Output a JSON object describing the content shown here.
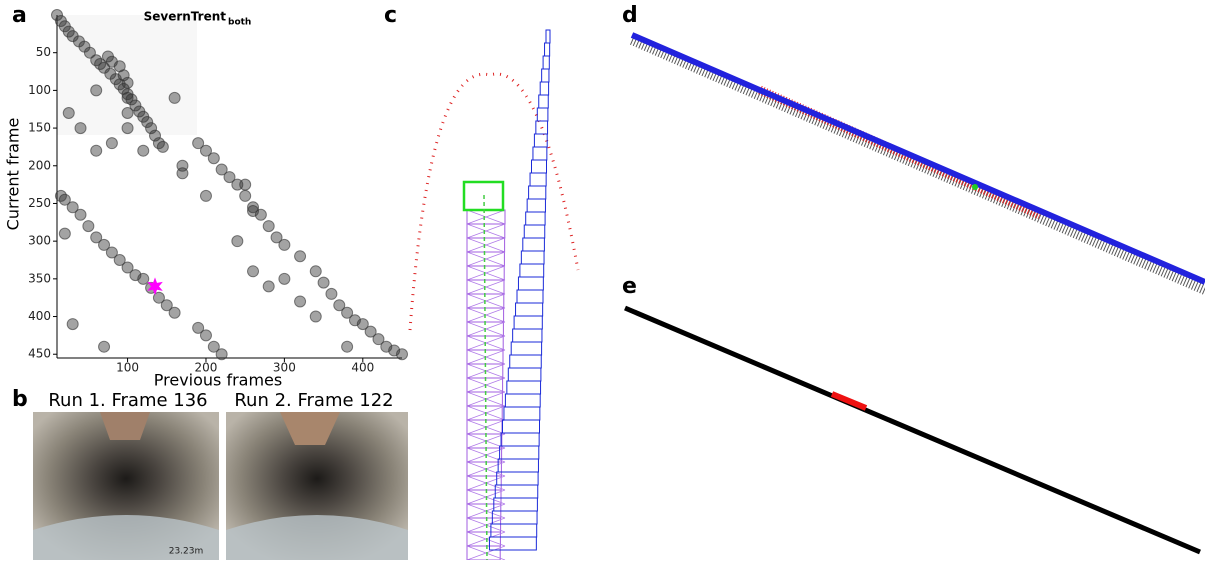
{
  "panel_labels": [
    "a",
    "b",
    "c",
    "d",
    "e"
  ],
  "chart_data": {
    "type": "scatter",
    "title": "SevernTrent",
    "title_subscript": "both",
    "x_label": "Previous frames",
    "y_label": "Current frame",
    "xlim": [
      10,
      450
    ],
    "ylim": [
      455,
      0
    ],
    "xticks": [
      100,
      200,
      300,
      400
    ],
    "yticks": [
      50,
      100,
      150,
      200,
      250,
      300,
      350,
      400,
      450
    ],
    "color": "#333333",
    "x": [
      10,
      15,
      20,
      25,
      30,
      38,
      45,
      52,
      60,
      65,
      70,
      78,
      85,
      90,
      95,
      100,
      105,
      110,
      115,
      120,
      125,
      130,
      135,
      140,
      145,
      75,
      80,
      90,
      95,
      100,
      100,
      100,
      100,
      190,
      200,
      210,
      220,
      230,
      240,
      250,
      260,
      270,
      280,
      290,
      300,
      320,
      340,
      350,
      360,
      370,
      380,
      390,
      400,
      410,
      420,
      430,
      440,
      450,
      15,
      20,
      30,
      40,
      50,
      60,
      70,
      80,
      90,
      100,
      110,
      120,
      130,
      140,
      150,
      160,
      190,
      200,
      210,
      220,
      25,
      40,
      60,
      80,
      120,
      170,
      200,
      240,
      260,
      260,
      280,
      300,
      320,
      340,
      30,
      70,
      170,
      20,
      380,
      250,
      160,
      60
    ],
    "values": [
      0,
      8,
      15,
      22,
      28,
      35,
      42,
      50,
      60,
      65,
      70,
      78,
      85,
      92,
      98,
      105,
      112,
      120,
      128,
      135,
      142,
      150,
      160,
      170,
      175,
      55,
      62,
      68,
      80,
      90,
      110,
      130,
      150,
      170,
      180,
      190,
      205,
      215,
      225,
      240,
      255,
      265,
      280,
      295,
      305,
      320,
      340,
      355,
      370,
      385,
      395,
      405,
      410,
      420,
      430,
      440,
      445,
      450,
      240,
      245,
      255,
      265,
      280,
      295,
      305,
      315,
      325,
      335,
      345,
      350,
      362,
      375,
      385,
      395,
      415,
      425,
      440,
      450,
      130,
      150,
      180,
      170,
      180,
      200,
      240,
      300,
      260,
      340,
      360,
      350,
      380,
      400,
      410,
      440,
      210,
      290,
      440,
      225,
      110,
      100
    ],
    "highlight": {
      "x": 135,
      "y": 360,
      "color": "#ff00ff"
    }
  },
  "images": [
    {
      "title": "Run 1. Frame 136",
      "overlay": "23.23m"
    },
    {
      "title": "Run 2. Frame 122"
    }
  ]
}
